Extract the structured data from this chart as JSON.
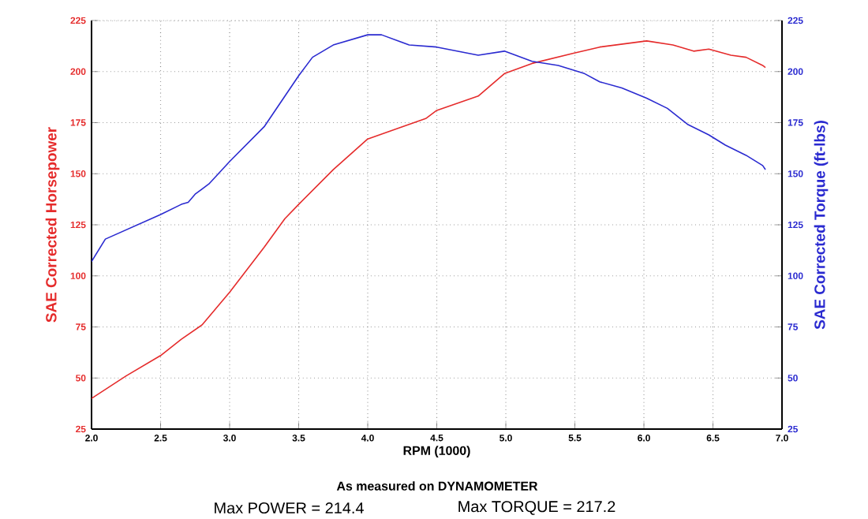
{
  "chart_data": {
    "type": "line",
    "xlabel": "RPM (1000)",
    "ylabel": "SAE Corrected Horsepower",
    "y2label": "SAE Corrected Torque (ft-lbs)",
    "xlim": [
      2.0,
      7.0
    ],
    "xticks": [
      {
        "value": 2.0,
        "label": "2.0"
      },
      {
        "value": 2.5,
        "label": "2.5"
      },
      {
        "value": 3.0,
        "label": "3.0"
      },
      {
        "value": 3.5,
        "label": "3.5"
      },
      {
        "value": 4.0,
        "label": "4.0"
      },
      {
        "value": 4.5,
        "label": "4.5"
      },
      {
        "value": 5.0,
        "label": "5.0"
      },
      {
        "value": 5.5,
        "label": "5.5"
      },
      {
        "value": 6.0,
        "label": "6.0"
      },
      {
        "value": 6.5,
        "label": "6.5"
      },
      {
        "value": 7.0,
        "label": "7.0"
      }
    ],
    "ylim": [
      25,
      225
    ],
    "yticks": [
      25,
      50,
      75,
      100,
      125,
      150,
      175,
      200,
      225
    ],
    "y2lim": [
      25,
      225
    ],
    "y2ticks": [
      25,
      50,
      75,
      100,
      125,
      150,
      175,
      200,
      225
    ],
    "grid": true,
    "line_style": "solid",
    "marker": "none",
    "series": [
      {
        "color": "#e52b2b",
        "x": [
          2.0,
          2.25,
          2.5,
          2.65,
          2.8,
          3.0,
          3.25,
          3.4,
          3.5,
          3.75,
          4.0,
          4.25,
          4.42,
          4.5,
          4.8,
          4.99,
          5.19,
          5.49,
          5.68,
          6.02,
          6.21,
          6.36,
          6.47,
          6.63,
          6.74,
          6.86,
          6.88
        ],
        "values": [
          40,
          51,
          61,
          69,
          76,
          92,
          114,
          128,
          135,
          152,
          167,
          173,
          177,
          181,
          188,
          199,
          204,
          209,
          212,
          215,
          213,
          210,
          211,
          208,
          207,
          203,
          202
        ]
      },
      {
        "color": "#2a2ad0",
        "axis": "y2",
        "x": [
          2.0,
          2.1,
          2.3,
          2.5,
          2.65,
          2.7,
          2.75,
          2.85,
          3.0,
          3.25,
          3.5,
          3.6,
          3.75,
          4.0,
          4.1,
          4.3,
          4.5,
          4.65,
          4.8,
          4.99,
          5.19,
          5.38,
          5.57,
          5.68,
          5.84,
          6.02,
          6.17,
          6.32,
          6.47,
          6.59,
          6.74,
          6.86,
          6.88
        ],
        "values": [
          107,
          118,
          124,
          130,
          135,
          136,
          140,
          145,
          156,
          173,
          198,
          207,
          213,
          218,
          218,
          213,
          212,
          210,
          208,
          210,
          205,
          203,
          199,
          195,
          192,
          187,
          182,
          174,
          169,
          164,
          159,
          154,
          152
        ]
      }
    ],
    "annotations": [
      "As measured on DYNAMOMETER",
      "Max POWER = 214.4",
      "Max TORQUE = 217.2"
    ]
  }
}
